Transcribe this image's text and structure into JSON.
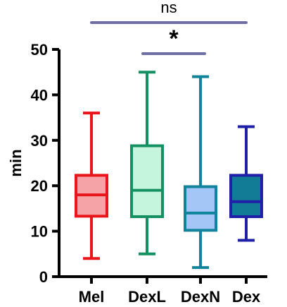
{
  "chart_data": {
    "type": "box",
    "title": "",
    "xlabel": "",
    "ylabel": "min",
    "ylim": [
      0,
      50
    ],
    "yticks": [
      0,
      10,
      20,
      30,
      40,
      50
    ],
    "grid": false,
    "categories": [
      "Mel",
      "DexL",
      "DexN",
      "Dex"
    ],
    "boxes": [
      {
        "category": "Mel",
        "min": 4,
        "q1": 13.3,
        "median": 18,
        "q3": 22.3,
        "max": 36,
        "stroke": "#e8151b",
        "fill": "#f5a3a6"
      },
      {
        "category": "DexL",
        "min": 5,
        "q1": 13.2,
        "median": 19,
        "q3": 28.8,
        "max": 45,
        "stroke": "#159062",
        "fill": "#c6f5dd"
      },
      {
        "category": "DexN",
        "min": 2,
        "q1": 10.2,
        "median": 14,
        "q3": 19.8,
        "max": 44,
        "stroke": "#11839a",
        "fill": "#a3c6f7"
      },
      {
        "category": "Dex",
        "min": 8,
        "q1": 13.2,
        "median": 16.5,
        "q3": 22.3,
        "max": 33,
        "stroke": "#1f1fa8",
        "fill": "#127c97"
      }
    ],
    "annotations": [
      {
        "label": "ns",
        "from": "Mel",
        "to": "Dex",
        "color": "#6f6fa6"
      },
      {
        "label": "*",
        "from": "DexL",
        "to": "DexN",
        "color": "#6f6fa6"
      }
    ]
  }
}
